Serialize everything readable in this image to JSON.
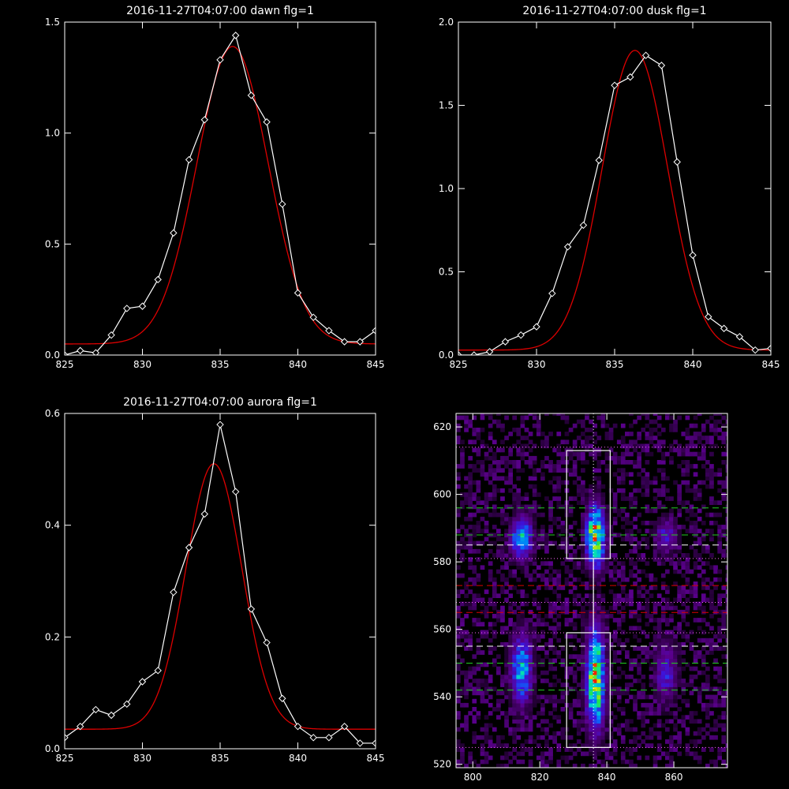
{
  "chart_data": [
    {
      "type": "line",
      "title": "2016-11-27T04:07:00 dawn flg=1",
      "xlim": [
        825,
        845
      ],
      "ylim": [
        0,
        1.5
      ],
      "x_ticks": [
        "825",
        "830",
        "835",
        "840",
        "845"
      ],
      "y_ticks": [
        "0.0",
        "0.5",
        "1.0",
        "1.5"
      ],
      "series": [
        {
          "style": "white-diamonds",
          "x": [
            825,
            826,
            827,
            828,
            829,
            830,
            831,
            832,
            833,
            834,
            835,
            836,
            837,
            838,
            839,
            840,
            841,
            842,
            843,
            844,
            845
          ],
          "y": [
            0.0,
            0.02,
            0.01,
            0.09,
            0.21,
            0.22,
            0.34,
            0.55,
            0.88,
            1.06,
            1.33,
            1.44,
            1.17,
            1.05,
            0.68,
            0.28,
            0.17,
            0.11,
            0.06,
            0.06,
            0.11
          ]
        },
        {
          "style": "red-gaussian-fit",
          "baseline": 0.05,
          "amplitude": 1.34,
          "center": 835.8,
          "sigma": 2.3
        }
      ]
    },
    {
      "type": "line",
      "title": "2016-11-27T04:07:00 dusk flg=1",
      "xlim": [
        825,
        845
      ],
      "ylim": [
        0,
        2.0
      ],
      "x_ticks": [
        "825",
        "830",
        "835",
        "840",
        "845"
      ],
      "y_ticks": [
        "0.0",
        "0.5",
        "1.0",
        "1.5",
        "2.0"
      ],
      "series": [
        {
          "style": "white-diamonds",
          "x": [
            825,
            826,
            827,
            828,
            829,
            830,
            831,
            832,
            833,
            834,
            835,
            836,
            837,
            838,
            839,
            840,
            841,
            842,
            843,
            844,
            845
          ],
          "y": [
            0.0,
            0.0,
            0.02,
            0.08,
            0.12,
            0.17,
            0.37,
            0.65,
            0.78,
            1.17,
            1.62,
            1.67,
            1.8,
            1.74,
            1.16,
            0.6,
            0.23,
            0.16,
            0.11,
            0.03,
            0.04
          ]
        },
        {
          "style": "red-gaussian-fit",
          "baseline": 0.03,
          "amplitude": 1.8,
          "center": 836.3,
          "sigma": 2.1
        }
      ]
    },
    {
      "type": "line",
      "title": "2016-11-27T04:07:00 aurora flg=1",
      "xlim": [
        825,
        845
      ],
      "ylim": [
        0,
        0.6
      ],
      "x_ticks": [
        "825",
        "830",
        "835",
        "840",
        "845"
      ],
      "y_ticks": [
        "0.0",
        "0.2",
        "0.4",
        "0.6"
      ],
      "series": [
        {
          "style": "white-diamonds",
          "x": [
            825,
            826,
            827,
            828,
            829,
            830,
            831,
            832,
            833,
            834,
            835,
            836,
            837,
            838,
            839,
            840,
            841,
            842,
            843,
            844,
            845
          ],
          "y": [
            0.02,
            0.04,
            0.07,
            0.06,
            0.08,
            0.12,
            0.14,
            0.28,
            0.36,
            0.42,
            0.58,
            0.46,
            0.25,
            0.19,
            0.09,
            0.04,
            0.02,
            0.02,
            0.04,
            0.01,
            0.01
          ]
        },
        {
          "style": "red-gaussian-fit",
          "baseline": 0.035,
          "amplitude": 0.475,
          "center": 834.6,
          "sigma": 1.8
        }
      ]
    },
    {
      "type": "heatmap",
      "title": "",
      "xlim": [
        795,
        876
      ],
      "ylim": [
        519,
        624
      ],
      "x_ticks": [
        "800",
        "820",
        "840",
        "860"
      ],
      "y_ticks": [
        "520",
        "540",
        "560",
        "580",
        "600",
        "620"
      ],
      "emission_columns": [
        {
          "x": 814,
          "y_ranges": [
            [
              580,
              593
            ],
            [
              537,
              558
            ]
          ]
        },
        {
          "x": 836,
          "y_ranges": [
            [
              578,
              596
            ],
            [
              530,
              560
            ]
          ]
        },
        {
          "x": 857,
          "y_ranges": [
            [
              582,
              592
            ],
            [
              538,
              556
            ]
          ]
        }
      ],
      "vertical_dotted_line_x": 836,
      "boxes": [
        {
          "x0": 828,
          "x1": 841,
          "y0": 581,
          "y1": 613
        },
        {
          "x0": 828,
          "x1": 841,
          "y0": 525,
          "y1": 559
        }
      ],
      "horizontal_lines": [
        {
          "y": 614,
          "style": "pink-dotted"
        },
        {
          "y": 596,
          "style": "green-dashed"
        },
        {
          "y": 588,
          "style": "green-dashed"
        },
        {
          "y": 585,
          "style": "white-dashed"
        },
        {
          "y": 581,
          "style": "pink-dotted"
        },
        {
          "y": 573,
          "style": "red-dashed"
        },
        {
          "y": 568,
          "style": "pink-dotted"
        },
        {
          "y": 565,
          "style": "red-dashed"
        },
        {
          "y": 559,
          "style": "pink-dotted"
        },
        {
          "y": 555,
          "style": "white-dashed"
        },
        {
          "y": 550,
          "style": "green-dashed"
        },
        {
          "y": 542,
          "style": "green-dashed"
        },
        {
          "y": 525,
          "style": "pink-dotted"
        }
      ]
    }
  ],
  "colors": {
    "background": "#000000",
    "axis": "#ffffff",
    "data_line": "#ffffff",
    "fit_line": "#dd0000",
    "green_dashed": "#22cc22",
    "red_dashed": "#dd0000",
    "white_dashed": "#ffffff",
    "pink_dotted": "#ff66ff"
  }
}
